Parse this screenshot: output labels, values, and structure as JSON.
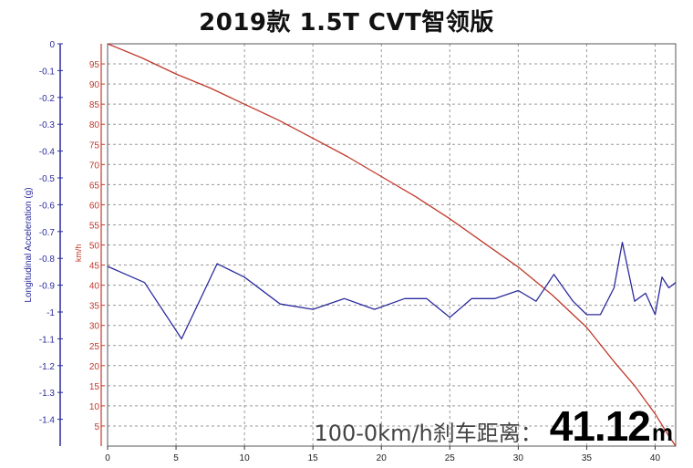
{
  "header": {
    "title": "2019款 1.5T CVT智领版"
  },
  "annotation": {
    "label": "100-0km/h刹车距离：",
    "value": "41.12",
    "unit": "m"
  },
  "chart_data": {
    "type": "line",
    "title": "2019款 1.5T CVT智领版",
    "xlabel": "",
    "xlim": [
      0,
      41.5
    ],
    "x_ticks": [
      0,
      5,
      10,
      15,
      20,
      25,
      30,
      35,
      40
    ],
    "grid": true,
    "axes": {
      "accel": {
        "label": "Longitudinal Acceleration (g)",
        "range": [
          -1.5,
          0
        ],
        "ticks": [
          0,
          -0.1,
          -0.2,
          -0.3,
          -0.4,
          -0.5,
          -0.6,
          -0.7,
          -0.8,
          -0.9,
          -1,
          -1.1,
          -1.2,
          -1.3,
          -1.4
        ],
        "color": "#2b2b9e"
      },
      "speed": {
        "label": "km/h",
        "range": [
          0,
          100
        ],
        "ticks": [
          5,
          10,
          15,
          20,
          25,
          30,
          35,
          40,
          45,
          50,
          55,
          60,
          65,
          70,
          75,
          80,
          85,
          90,
          95
        ],
        "color": "#c0392b"
      }
    },
    "series": [
      {
        "axis": "speed",
        "color": "#c0392b",
        "x": [
          0,
          2.5,
          5,
          7.5,
          10,
          12.5,
          15,
          17.5,
          20,
          22.5,
          25,
          27.5,
          30,
          32.5,
          35,
          37,
          38.5,
          40,
          41,
          41.5
        ],
        "values": [
          100,
          96.5,
          92.5,
          89,
          85,
          81,
          76.5,
          72,
          67,
          62,
          56.5,
          50.5,
          44.5,
          37.5,
          29.5,
          21,
          15,
          8,
          2.5,
          0
        ]
      },
      {
        "axis": "accel",
        "color": "#2b2b9e",
        "x": [
          0,
          2.7,
          5.4,
          8,
          10,
          12.6,
          15,
          17.3,
          19.5,
          21.7,
          23.3,
          25,
          26.6,
          28.3,
          30,
          31.3,
          32.6,
          34,
          35,
          36,
          37,
          37.6,
          38.5,
          39.3,
          40,
          40.5,
          41,
          41.5
        ],
        "values": [
          -0.83,
          -0.89,
          -1.1,
          -0.82,
          -0.87,
          -0.97,
          -0.99,
          -0.95,
          -0.99,
          -0.95,
          -0.95,
          -1.02,
          -0.95,
          -0.95,
          -0.92,
          -0.96,
          -0.86,
          -0.96,
          -1.01,
          -1.01,
          -0.91,
          -0.74,
          -0.96,
          -0.93,
          -1.01,
          -0.87,
          -0.91,
          -0.89
        ]
      }
    ]
  }
}
